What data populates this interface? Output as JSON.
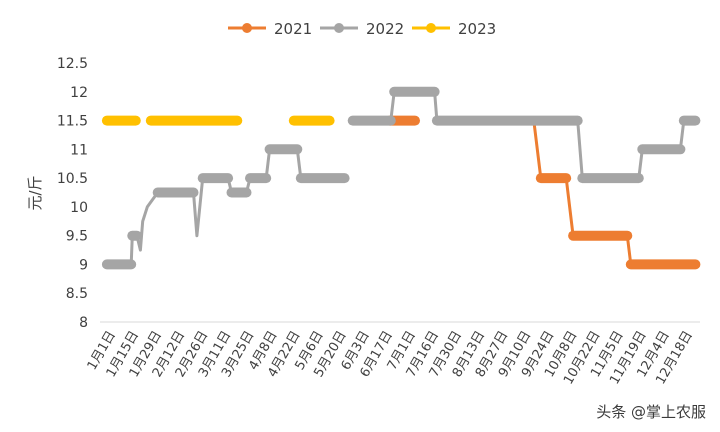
{
  "chart_data": {
    "type": "line",
    "ylabel": "元/斤",
    "ylim": [
      8,
      12.5
    ],
    "yticks": [
      "8",
      "8.5",
      "9",
      "9.5",
      "10",
      "10.5",
      "11",
      "11.5",
      "12",
      "12.5"
    ],
    "grid": false,
    "legend_position": "top",
    "categories": [
      "1月1日",
      "1月15日",
      "1月29日",
      "2月12日",
      "2月26日",
      "3月11日",
      "3月25日",
      "4月8日",
      "4月22日",
      "5月6日",
      "5月20日",
      "6月3日",
      "6月17日",
      "7月1日",
      "7月16日",
      "7月30日",
      "8月13日",
      "8月27日",
      "9月10日",
      "9月24日",
      "10月8日",
      "10月22日",
      "11月5日",
      "11月19日",
      "12月4日",
      "12月18日"
    ],
    "series": [
      {
        "name": "2021",
        "color": "#ED7D31",
        "segments": [
          [
            [
              12.55,
              11.5
            ],
            [
              13.65,
              11.5
            ]
          ],
          [
            [
              18.8,
              11.5
            ],
            [
              19.1,
              10.5
            ],
            [
              20.2,
              10.5
            ],
            [
              20.5,
              9.5
            ],
            [
              22.85,
              9.5
            ],
            [
              23.0,
              9.0
            ],
            [
              25.8,
              9.0
            ]
          ]
        ]
      },
      {
        "name": "2022",
        "color": "#A5A5A5",
        "segments": [
          [
            [
              0.3,
              9.0
            ],
            [
              1.35,
              9.0
            ],
            [
              1.4,
              9.5
            ],
            [
              1.6,
              9.5
            ],
            [
              1.75,
              9.25
            ],
            [
              1.85,
              9.75
            ],
            [
              2.05,
              10.0
            ],
            [
              2.5,
              10.25
            ],
            [
              4.05,
              10.25
            ],
            [
              4.2,
              9.5
            ],
            [
              4.45,
              10.5
            ],
            [
              5.55,
              10.5
            ],
            [
              5.7,
              10.25
            ],
            [
              6.35,
              10.25
            ],
            [
              6.5,
              10.5
            ],
            [
              7.2,
              10.5
            ],
            [
              7.35,
              11.0
            ],
            [
              8.55,
              11.0
            ],
            [
              8.7,
              10.5
            ],
            [
              10.6,
              10.5
            ]
          ],
          [
            [
              10.95,
              11.5
            ],
            [
              12.6,
              11.5
            ],
            [
              12.75,
              12.0
            ],
            [
              14.5,
              12.0
            ],
            [
              14.6,
              11.5
            ],
            [
              20.7,
              11.5
            ],
            [
              20.9,
              10.5
            ],
            [
              23.35,
              10.5
            ],
            [
              23.5,
              11.0
            ],
            [
              25.15,
              11.0
            ],
            [
              25.3,
              11.5
            ],
            [
              25.8,
              11.5
            ]
          ]
        ]
      },
      {
        "name": "2023",
        "color": "#FFC000",
        "segments": [
          [
            [
              0.3,
              11.5
            ],
            [
              1.55,
              11.5
            ]
          ],
          [
            [
              2.2,
              11.5
            ],
            [
              5.95,
              11.5
            ]
          ],
          [
            [
              8.4,
              11.5
            ],
            [
              9.95,
              11.5
            ]
          ]
        ]
      }
    ]
  },
  "watermark": "头条 @掌上农服"
}
